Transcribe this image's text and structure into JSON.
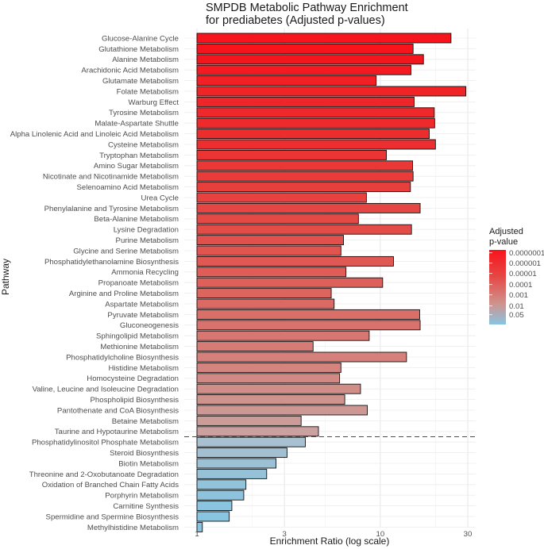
{
  "chart_data": {
    "type": "bar",
    "orientation": "horizontal",
    "title": [
      "SMPDB Metabolic Pathway Enrichment",
      "for prediabetes (Adjusted p-values)"
    ],
    "xlabel": "Enrichment Ratio (log scale)",
    "ylabel": "Pathway",
    "x_scale": "log10",
    "xlim": [
      1,
      34
    ],
    "x_ticks": [
      1,
      3,
      10,
      30
    ],
    "x_tick_labels": [
      "1",
      "3",
      "10",
      "30"
    ],
    "significance_threshold": 0.05,
    "threshold_line_after": "Taurine and Hypotaurine Metabolism",
    "legend": {
      "title": [
        "Adjusted",
        "p-value"
      ],
      "placement": "right",
      "labels": [
        "0.0000001",
        "0.000001",
        "0.00001",
        "0.0001",
        "0.001",
        "0.01",
        "0.05"
      ],
      "color_low": "#f8141c",
      "color_high": "#88c4e2"
    },
    "bars": [
      {
        "pathway": "Glucose-Alanine Cycle",
        "ratio": 24.3,
        "p": 1e-07,
        "color": "#f8141c"
      },
      {
        "pathway": "Glutathione Metabolism",
        "ratio": 15.1,
        "p": 1.1e-07,
        "color": "#f7141c"
      },
      {
        "pathway": "Alanine Metabolism",
        "ratio": 17.2,
        "p": 1.3e-07,
        "color": "#f5151d"
      },
      {
        "pathway": "Arachidonic Acid Metabolism",
        "ratio": 14.7,
        "p": 3e-07,
        "color": "#f31a21"
      },
      {
        "pathway": "Glutamate Metabolism",
        "ratio": 9.5,
        "p": 5e-07,
        "color": "#f21f24"
      },
      {
        "pathway": "Folate Metabolism",
        "ratio": 29.3,
        "p": 6e-07,
        "color": "#f02427"
      },
      {
        "pathway": "Warburg Effect",
        "ratio": 15.3,
        "p": 7e-07,
        "color": "#ef2629"
      },
      {
        "pathway": "Tyrosine Metabolism",
        "ratio": 19.7,
        "p": 8e-07,
        "color": "#ee282b"
      },
      {
        "pathway": "Malate-Aspartate Shuttle",
        "ratio": 19.8,
        "p": 9e-07,
        "color": "#ee2a2c"
      },
      {
        "pathway": "Alpha Linolenic Acid and Linoleic Acid Metabolism",
        "ratio": 18.5,
        "p": 1e-06,
        "color": "#ed2c2e"
      },
      {
        "pathway": "Cysteine Metabolism",
        "ratio": 20.0,
        "p": 1.2e-06,
        "color": "#ec2e30"
      },
      {
        "pathway": "Tryptophan Metabolism",
        "ratio": 10.8,
        "p": 1.8e-06,
        "color": "#eb3434"
      },
      {
        "pathway": "Amino Sugar Metabolism",
        "ratio": 15.0,
        "p": 2.4e-06,
        "color": "#ea3837"
      },
      {
        "pathway": "Nicotinate and Nicotinamide Metabolism",
        "ratio": 15.1,
        "p": 3e-06,
        "color": "#e93b3a"
      },
      {
        "pathway": "Selenoamino Acid Metabolism",
        "ratio": 14.6,
        "p": 4e-06,
        "color": "#e83e3c"
      },
      {
        "pathway": "Urea Cycle",
        "ratio": 8.4,
        "p": 6e-06,
        "color": "#e74240"
      },
      {
        "pathway": "Phenylalanine and Tyrosine Metabolism",
        "ratio": 16.5,
        "p": 8e-06,
        "color": "#e64643"
      },
      {
        "pathway": "Beta-Alanine Metabolism",
        "ratio": 7.6,
        "p": 1e-05,
        "color": "#e54945"
      },
      {
        "pathway": "Lysine Degradation",
        "ratio": 14.8,
        "p": 1.3e-05,
        "color": "#e44c48"
      },
      {
        "pathway": "Purine Metabolism",
        "ratio": 6.3,
        "p": 1.8e-05,
        "color": "#e3504c"
      },
      {
        "pathway": "Glycine and Serine Metabolism",
        "ratio": 6.1,
        "p": 2.3e-05,
        "color": "#e2544f"
      },
      {
        "pathway": "Phosphatidylethanolamine Biosynthesis",
        "ratio": 11.8,
        "p": 3e-05,
        "color": "#e05853"
      },
      {
        "pathway": "Ammonia Recycling",
        "ratio": 6.5,
        "p": 4e-05,
        "color": "#df5c57"
      },
      {
        "pathway": "Propanoate Metabolism",
        "ratio": 10.3,
        "p": 5e-05,
        "color": "#de605b"
      },
      {
        "pathway": "Arginine and Proline Metabolism",
        "ratio": 5.4,
        "p": 6.5e-05,
        "color": "#dd655f"
      },
      {
        "pathway": "Aspartate Metabolism",
        "ratio": 5.6,
        "p": 8e-05,
        "color": "#dc6963"
      },
      {
        "pathway": "Pyruvate Metabolism",
        "ratio": 16.4,
        "p": 0.00011,
        "color": "#da6e68"
      },
      {
        "pathway": "Gluconeogenesis",
        "ratio": 16.5,
        "p": 0.00014,
        "color": "#d9726c"
      },
      {
        "pathway": "Sphingolipid Metabolism",
        "ratio": 8.7,
        "p": 0.00018,
        "color": "#d87771"
      },
      {
        "pathway": "Methionine Metabolism",
        "ratio": 4.3,
        "p": 0.00024,
        "color": "#d67b75"
      },
      {
        "pathway": "Phosphatidylcholine Biosynthesis",
        "ratio": 13.9,
        "p": 0.0003,
        "color": "#d5807a"
      },
      {
        "pathway": "Histidine Metabolism",
        "ratio": 6.1,
        "p": 0.0004,
        "color": "#d4847f"
      },
      {
        "pathway": "Homocysteine Degradation",
        "ratio": 6.0,
        "p": 0.0005,
        "color": "#d28984"
      },
      {
        "pathway": "Valine, Leucine and Isoleucine Degradation",
        "ratio": 7.8,
        "p": 0.0007,
        "color": "#d18e89"
      },
      {
        "pathway": "Phospholipid Biosynthesis",
        "ratio": 6.4,
        "p": 0.0009,
        "color": "#cf938e"
      },
      {
        "pathway": "Pantothenate and CoA Biosynthesis",
        "ratio": 8.5,
        "p": 0.0013,
        "color": "#cd9893"
      },
      {
        "pathway": "Betaine Metabolism",
        "ratio": 3.7,
        "p": 0.0018,
        "color": "#cc9d98"
      },
      {
        "pathway": "Taurine and Hypotaurine Metabolism",
        "ratio": 4.6,
        "p": 0.0025,
        "color": "#caa19e"
      },
      {
        "pathway": "Phosphatidylinositol Phosphate Metabolism",
        "ratio": 3.9,
        "p": 0.06,
        "color": "#a8c0d0"
      },
      {
        "pathway": "Steroid Biosynthesis",
        "ratio": 3.1,
        "p": 0.08,
        "color": "#a2c0d2"
      },
      {
        "pathway": "Biotin Metabolism",
        "ratio": 2.7,
        "p": 0.1,
        "color": "#9cc1d5"
      },
      {
        "pathway": "Threonine and 2-Oxobutanoate Degradation",
        "ratio": 2.4,
        "p": 0.15,
        "color": "#96c2d8"
      },
      {
        "pathway": "Oxidation of Branched Chain Fatty Acids",
        "ratio": 1.85,
        "p": 0.2,
        "color": "#91c3db"
      },
      {
        "pathway": "Porphyrin Metabolism",
        "ratio": 1.8,
        "p": 0.25,
        "color": "#8ec3dd"
      },
      {
        "pathway": "Carnitine Synthesis",
        "ratio": 1.55,
        "p": 0.3,
        "color": "#8bc4df"
      },
      {
        "pathway": "Spermidine and Spermine Biosynthesis",
        "ratio": 1.5,
        "p": 0.35,
        "color": "#89c4e1"
      },
      {
        "pathway": "Methylhistidine Metabolism",
        "ratio": 1.07,
        "p": 0.4,
        "color": "#88c4e2"
      }
    ]
  }
}
